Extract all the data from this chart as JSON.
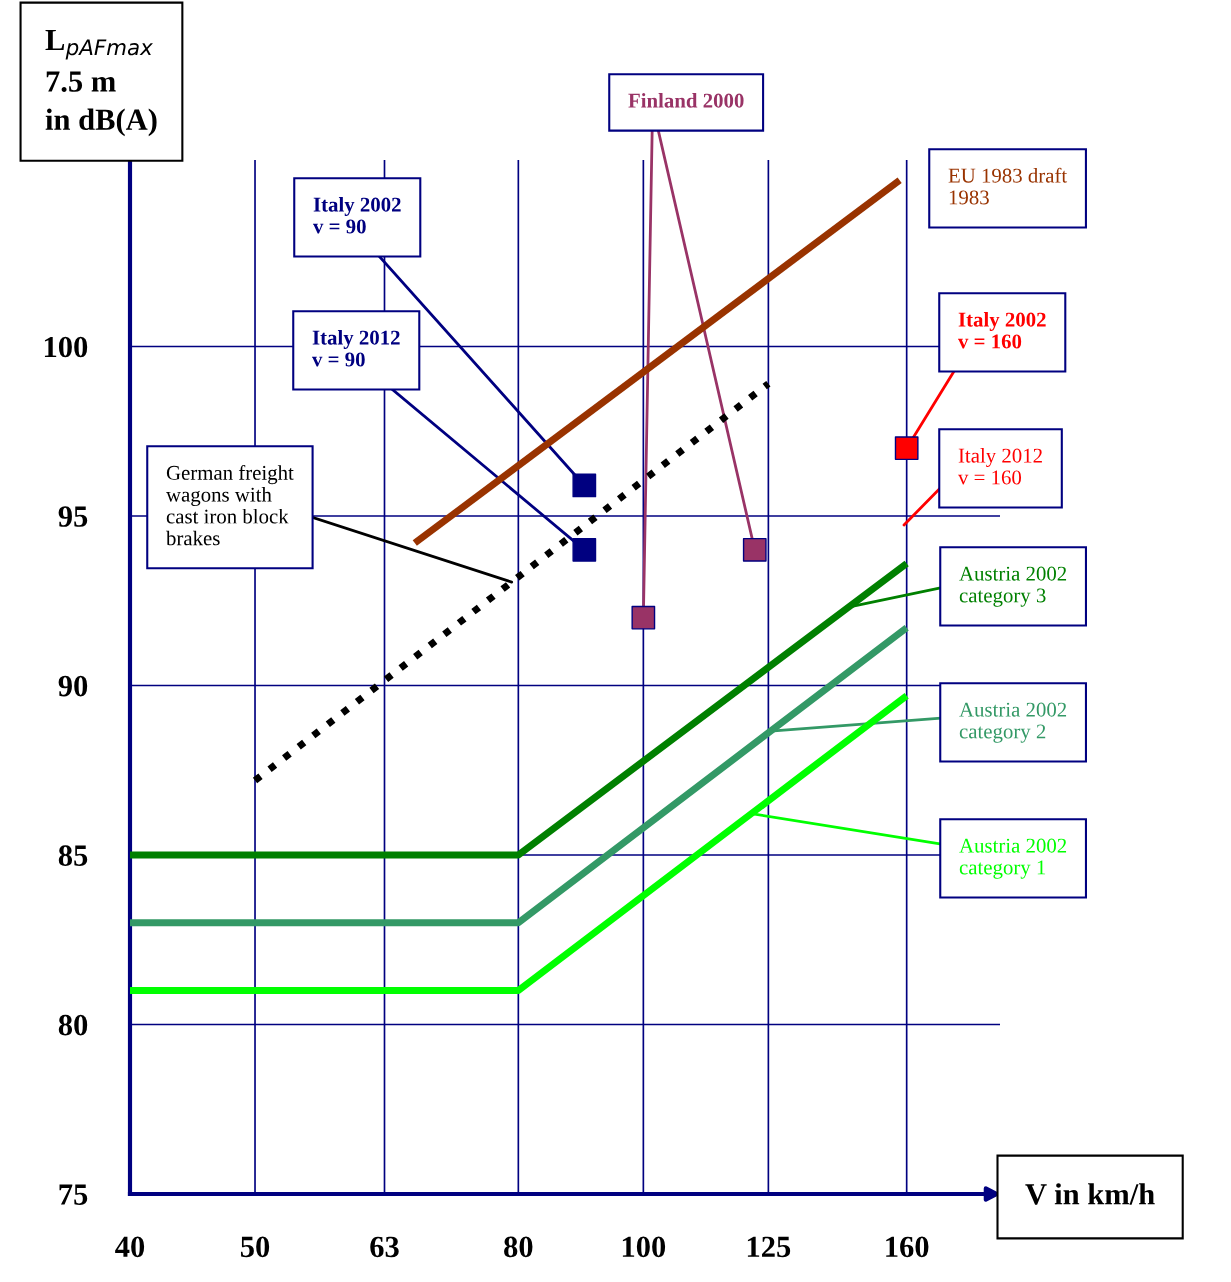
{
  "chart_data": {
    "type": "line",
    "ylabel": "L$_{pAFmax}$\n7.5 m\nin dB(A)",
    "xlabel": "V in km/h",
    "log": "x",
    "xlim": [
      40,
      189
    ],
    "xticks": [
      40,
      50,
      63,
      80,
      100,
      125,
      160
    ],
    "ylim": [
      75,
      105.5
    ],
    "yticks": [
      75,
      80,
      85,
      90,
      95,
      100
    ],
    "grid": true,
    "series": [
      {
        "name": "Italy 2002\nv = 90",
        "type": "scatter",
        "marker": "square",
        "color": "#000080",
        "x": [
          90
        ],
        "values": [
          95.9
        ]
      },
      {
        "name": "Italy 2012\nv = 90",
        "type": "scatter",
        "marker": "square",
        "color": "#000080",
        "x": [
          90
        ],
        "values": [
          94
        ]
      },
      {
        "name": "Finland 2000",
        "type": "scatter",
        "marker": "square",
        "color": "#993366",
        "x": [
          100,
          122
        ],
        "values": [
          92,
          94
        ]
      },
      {
        "name": "EU 1983 draft\n1983",
        "line_style": "solid",
        "color": "#993300",
        "x": [
          66.5,
          158
        ],
        "values": [
          94.2,
          104.9
        ]
      },
      {
        "name": "Italy 2002\nv = 160",
        "type": "scatter",
        "marker": "square",
        "color": "#ff0000",
        "x": [
          160
        ],
        "values": [
          97
        ]
      },
      {
        "name": "Austria 2002\ncategory 3",
        "line_style": "solid",
        "color": "#008000",
        "x": [
          40,
          80,
          160
        ],
        "values": [
          85,
          85,
          93.6
        ]
      },
      {
        "name": "Austria 2002\ncategory 2",
        "line_style": "solid",
        "color": "#339966",
        "x": [
          40,
          80,
          160
        ],
        "values": [
          83,
          83,
          91.7
        ]
      },
      {
        "name": "Austria 2002\ncategory 1",
        "line_style": "solid",
        "color": "#00ff00",
        "x": [
          40,
          80,
          160
        ],
        "values": [
          81,
          81,
          89.7
        ]
      },
      {
        "name": "German freight\nwagons with\ncast iron block\nbrakes",
        "line_style": "dotted",
        "color": "#000000",
        "x": [
          50,
          125
        ],
        "values": [
          87.2,
          98.9
        ]
      }
    ],
    "annotations": [
      "Italy 2012\nv = 160"
    ]
  }
}
